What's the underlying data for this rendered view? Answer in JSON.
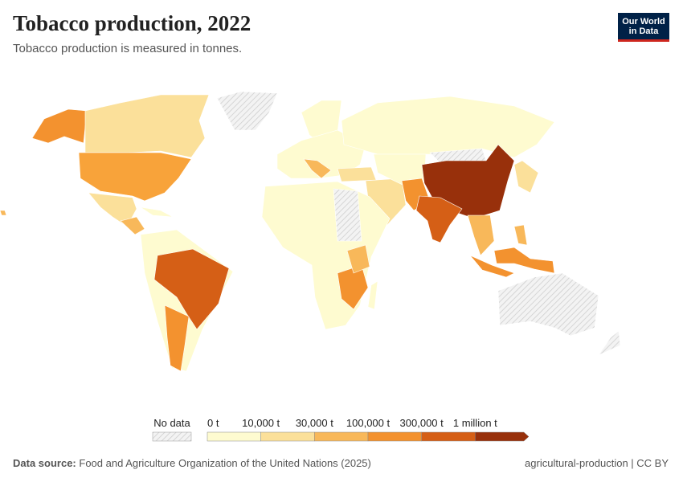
{
  "header": {
    "title": "Tobacco production, 2022",
    "subtitle": "Tobacco production is measured in tonnes.",
    "logo": [
      "Our World",
      "in Data"
    ]
  },
  "legend": {
    "no_data": "No data",
    "bins": [
      {
        "label": "0 t",
        "color": "#fefbd0"
      },
      {
        "label": "10,000 t",
        "color": "#fbe09a"
      },
      {
        "label": "30,000 t",
        "color": "#f8b85a"
      },
      {
        "label": "100,000 t",
        "color": "#f3922f"
      },
      {
        "label": "300,000 t",
        "color": "#d55f16"
      },
      {
        "label": "1 million t",
        "color": "#98300b"
      }
    ]
  },
  "footer": {
    "source_label": "Data source:",
    "source": "Food and Agriculture Organization of the United Nations (2025)",
    "note": "agricultural-production | CC BY"
  }
}
